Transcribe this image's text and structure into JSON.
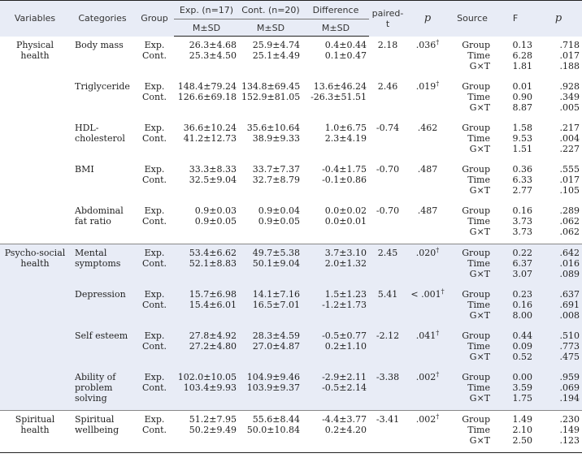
{
  "header": {
    "variables": "Variables",
    "categories": "Categories",
    "group": "Group",
    "exp_top": "Exp. (n=17)",
    "cont_top": "Cont. (n=20)",
    "diff_top": "Difference",
    "msd": "M±SD",
    "paired_t": "paired-t",
    "p": "p",
    "source": "Source",
    "f": "F",
    "p2": "p"
  },
  "rows": [
    {
      "variable": [
        "Physical",
        "health"
      ],
      "category": [
        "Body mass"
      ],
      "groups": [
        "Exp.",
        "Cont."
      ],
      "exp": [
        "26.3±4.68",
        "25.3±4.50"
      ],
      "cont": [
        "25.9±4.74",
        "25.1±4.49"
      ],
      "diff": [
        "0.4±0.44",
        "0.1±0.47"
      ],
      "paired_t": "2.18",
      "p": ".036",
      "p_dagger": "†",
      "sources": [
        "Group",
        "Time",
        "G×T"
      ],
      "f": [
        "0.13",
        "6.28",
        "1.81"
      ],
      "p2": [
        ".718",
        ".017",
        ".188"
      ]
    },
    {
      "variable": [],
      "category": [
        "Triglyceride"
      ],
      "groups": [
        "Exp.",
        "Cont."
      ],
      "exp": [
        "148.4±79.24",
        "126.6±69.18"
      ],
      "cont": [
        "134.8±69.45",
        "152.9±81.05"
      ],
      "diff": [
        "13.6±46.24",
        "-26.3±51.51"
      ],
      "paired_t": "2.46",
      "p": ".019",
      "p_dagger": "†",
      "sources": [
        "Group",
        "Time",
        "G×T"
      ],
      "f": [
        "0.01",
        "0.90",
        "8.87"
      ],
      "p2": [
        ".928",
        ".349",
        ".005"
      ]
    },
    {
      "variable": [],
      "category": [
        "HDL-",
        "cholesterol"
      ],
      "groups": [
        "Exp.",
        "Cont."
      ],
      "exp": [
        "36.6±10.24",
        "41.2±12.73"
      ],
      "cont": [
        "35.6±10.64",
        "38.9±9.33"
      ],
      "diff": [
        "1.0±6.75",
        "2.3±4.19"
      ],
      "paired_t": "-0.74",
      "p": ".462",
      "p_dagger": "",
      "sources": [
        "Group",
        "Time",
        "G×T"
      ],
      "f": [
        "1.58",
        "9.53",
        "1.51"
      ],
      "p2": [
        ".217",
        ".004",
        ".227"
      ]
    },
    {
      "variable": [],
      "category": [
        "BMI"
      ],
      "groups": [
        "Exp.",
        "Cont."
      ],
      "exp": [
        "33.3±8.33",
        "32.5±9.04"
      ],
      "cont": [
        "33.7±7.37",
        "32.7±8.79"
      ],
      "diff": [
        "-0.4±1.75",
        "-0.1±0.86"
      ],
      "paired_t": "-0.70",
      "p": ".487",
      "p_dagger": "",
      "sources": [
        "Group",
        "Time",
        "G×T"
      ],
      "f": [
        "0.36",
        "6.33",
        "2.77"
      ],
      "p2": [
        ".555",
        ".017",
        ".105"
      ]
    },
    {
      "variable": [],
      "category": [
        "Abdominal",
        "fat ratio"
      ],
      "groups": [
        "Exp.",
        "Cont."
      ],
      "exp": [
        "0.9±0.03",
        "0.9±0.05"
      ],
      "cont": [
        "0.9±0.04",
        "0.9±0.05"
      ],
      "diff": [
        "0.0±0.02",
        "0.0±0.01"
      ],
      "paired_t": "-0.70",
      "p": ".487",
      "p_dagger": "",
      "sources": [
        "Group",
        "Time",
        "G×T"
      ],
      "f": [
        "0.16",
        "3.73",
        "3.73"
      ],
      "p2": [
        ".289",
        ".062",
        ".062"
      ]
    },
    {
      "variable": [
        "Psycho-social",
        "health"
      ],
      "category": [
        "Mental",
        "symptoms"
      ],
      "groups": [
        "Exp.",
        "Cont."
      ],
      "exp": [
        "53.4±6.62",
        "52.1±8.83"
      ],
      "cont": [
        "49.7±5.38",
        "50.1±9.04"
      ],
      "diff": [
        "3.7±3.10",
        "2.0±1.32"
      ],
      "paired_t": "2.45",
      "p": ".020",
      "p_dagger": "†",
      "sources": [
        "Group",
        "Time",
        "G×T"
      ],
      "f": [
        "0.22",
        "6.37",
        "3.07"
      ],
      "p2": [
        ".642",
        ".016",
        ".089"
      ]
    },
    {
      "variable": [],
      "category": [
        "Depression"
      ],
      "groups": [
        "Exp.",
        "Cont."
      ],
      "exp": [
        "15.7±6.98",
        "15.4±6.01"
      ],
      "cont": [
        "14.1±7.16",
        "16.5±7.01"
      ],
      "diff": [
        "1.5±1.23",
        "-1.2±1.73"
      ],
      "paired_t": "5.41",
      "p": "< .001",
      "p_dagger": "†",
      "sources": [
        "Group",
        "Time",
        "G×T"
      ],
      "f": [
        "0.23",
        "0.16",
        "8.00"
      ],
      "p2": [
        ".637",
        ".691",
        ".008"
      ]
    },
    {
      "variable": [],
      "category": [
        "Self esteem"
      ],
      "groups": [
        "Exp.",
        "Cont."
      ],
      "exp": [
        "27.8±4.92",
        "27.2±4.80"
      ],
      "cont": [
        "28.3±4.59",
        "27.0±4.87"
      ],
      "diff": [
        "-0.5±0.77",
        "0.2±1.10"
      ],
      "paired_t": "-2.12",
      "p": ".041",
      "p_dagger": "†",
      "sources": [
        "Group",
        "Time",
        "G×T"
      ],
      "f": [
        "0.44",
        "0.09",
        "0.52"
      ],
      "p2": [
        ".510",
        ".773",
        ".475"
      ]
    },
    {
      "variable": [],
      "category": [
        "Ability of",
        "problem",
        "solving"
      ],
      "groups": [
        "Exp.",
        "Cont."
      ],
      "exp": [
        "102.0±10.05",
        "103.4±9.93"
      ],
      "cont": [
        "104.9±9.46",
        "103.9±9.37"
      ],
      "diff": [
        "-2.9±2.11",
        "-0.5±2.14"
      ],
      "paired_t": "-3.38",
      "p": ".002",
      "p_dagger": "†",
      "sources": [
        "Group",
        "Time",
        "G×T"
      ],
      "f": [
        "0.00",
        "3.59",
        "1.75"
      ],
      "p2": [
        ".959",
        ".069",
        ".194"
      ]
    },
    {
      "variable": [
        "Spiritual",
        "health"
      ],
      "category": [
        "Spiritual",
        "wellbeing"
      ],
      "groups": [
        "Exp.",
        "Cont."
      ],
      "exp": [
        "51.2±7.95",
        "50.2±9.49"
      ],
      "cont": [
        "55.6±8.44",
        "50.0±10.84"
      ],
      "diff": [
        "-4.4±3.77",
        "0.2±4.20"
      ],
      "paired_t": "-3.41",
      "p": ".002",
      "p_dagger": "†",
      "sources": [
        "Group",
        "Time",
        "G×T"
      ],
      "f": [
        "1.49",
        "2.10",
        "2.50"
      ],
      "p2": [
        ".230",
        ".149",
        ".123"
      ]
    }
  ]
}
